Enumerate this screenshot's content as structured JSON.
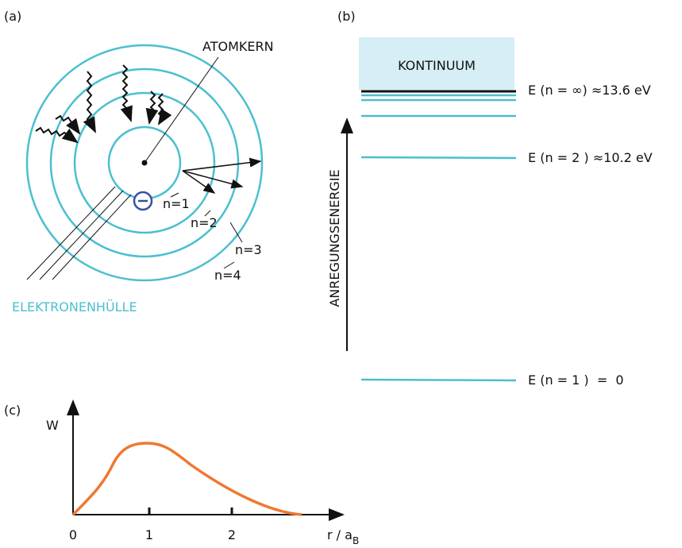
{
  "panel_a": {
    "label": "(a)",
    "nucleus_label": "ATOMKERN",
    "shells": [
      "n=1",
      "n=2",
      "n=3",
      "n=4"
    ],
    "shell_label": "ELEKTRONENHÜLLE"
  },
  "panel_b": {
    "label": "(b)",
    "continuum": "KONTINUUM",
    "axis_label": "ANREGUNGSENERGIE",
    "levels": [
      "E (n = ∞) ≈13.6 eV",
      "E (n = 2 ) ≈10.2 eV",
      "E (n = 1 )  =  0"
    ]
  },
  "panel_c": {
    "label": "(c)",
    "y_label": "W",
    "x_ticks": [
      "0",
      "1",
      "2"
    ],
    "x_label": "r / a",
    "x_label_sub": "B"
  }
}
